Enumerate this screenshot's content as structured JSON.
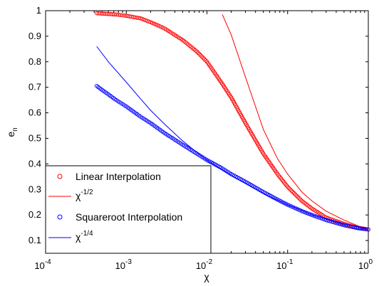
{
  "chart_data": {
    "type": "scatter",
    "x_scale": "log",
    "xlim": [
      0.0001,
      1
    ],
    "ylim": [
      0.05,
      1
    ],
    "xlabel": "χ",
    "ylabel": "e_n",
    "x_ticks": [
      {
        "value": 0.0001,
        "base": "10",
        "exp": "-4"
      },
      {
        "value": 0.001,
        "base": "10",
        "exp": "-3"
      },
      {
        "value": 0.01,
        "base": "10",
        "exp": "-2"
      },
      {
        "value": 0.1,
        "base": "10",
        "exp": "-1"
      },
      {
        "value": 1,
        "base": "10",
        "exp": "0"
      }
    ],
    "y_ticks": [
      {
        "value": 0.1,
        "label": "0.1"
      },
      {
        "value": 0.2,
        "label": "0.2"
      },
      {
        "value": 0.3,
        "label": "0.3"
      },
      {
        "value": 0.4,
        "label": "0.4"
      },
      {
        "value": 0.5,
        "label": "0.5"
      },
      {
        "value": 0.6,
        "label": "0.6"
      },
      {
        "value": 0.7,
        "label": "0.7"
      },
      {
        "value": 0.8,
        "label": "0.8"
      },
      {
        "value": 0.9,
        "label": "0.9"
      },
      {
        "value": 1.0,
        "label": "1"
      }
    ],
    "legend_position": "bottom-left",
    "series": [
      {
        "name": "Linear Interpolation",
        "kind": "markers",
        "marker": "circle",
        "color": "#ff0000",
        "x": [
          0.00043,
          0.00075,
          0.001,
          0.0015,
          0.002,
          0.003,
          0.005,
          0.0075,
          0.01,
          0.015,
          0.02,
          0.03,
          0.05,
          0.075,
          0.1,
          0.15,
          0.2,
          0.3,
          0.5,
          0.75,
          1.0
        ],
        "y": [
          0.99,
          0.985,
          0.98,
          0.97,
          0.955,
          0.93,
          0.885,
          0.84,
          0.8,
          0.72,
          0.66,
          0.56,
          0.44,
          0.36,
          0.31,
          0.255,
          0.225,
          0.19,
          0.165,
          0.15,
          0.143
        ]
      },
      {
        "name": "χ^{-1/2}",
        "legend_base": "χ",
        "legend_exp": "-1/2",
        "kind": "line",
        "color": "#ff0000",
        "x": [
          0.0155,
          0.02,
          0.03,
          0.05,
          0.075,
          0.1,
          0.15,
          0.2,
          0.3,
          0.5,
          0.75,
          1.0
        ],
        "y": [
          0.985,
          0.905,
          0.74,
          0.535,
          0.42,
          0.36,
          0.29,
          0.255,
          0.215,
          0.18,
          0.157,
          0.143
        ]
      },
      {
        "name": "Squareroot Interpolation",
        "kind": "markers",
        "marker": "circle",
        "color": "#0000ff",
        "x": [
          0.00043,
          0.00075,
          0.001,
          0.0015,
          0.002,
          0.003,
          0.005,
          0.0075,
          0.01,
          0.015,
          0.02,
          0.03,
          0.05,
          0.075,
          0.1,
          0.15,
          0.2,
          0.3,
          0.5,
          0.75,
          1.0
        ],
        "y": [
          0.705,
          0.65,
          0.625,
          0.585,
          0.56,
          0.52,
          0.475,
          0.44,
          0.415,
          0.385,
          0.36,
          0.33,
          0.29,
          0.26,
          0.24,
          0.215,
          0.2,
          0.18,
          0.16,
          0.148,
          0.143
        ]
      },
      {
        "name": "χ^{-1/4}",
        "legend_base": "χ",
        "legend_exp": "-1/4",
        "kind": "line",
        "color": "#0000ff",
        "x": [
          0.00043,
          0.0006,
          0.001,
          0.0015,
          0.002,
          0.003,
          0.005,
          0.0075,
          0.01,
          0.02,
          0.05,
          0.1,
          0.2,
          0.5,
          1.0
        ],
        "y": [
          0.86,
          0.8,
          0.72,
          0.655,
          0.61,
          0.555,
          0.49,
          0.445,
          0.415,
          0.355,
          0.285,
          0.24,
          0.2,
          0.165,
          0.143
        ]
      }
    ]
  }
}
